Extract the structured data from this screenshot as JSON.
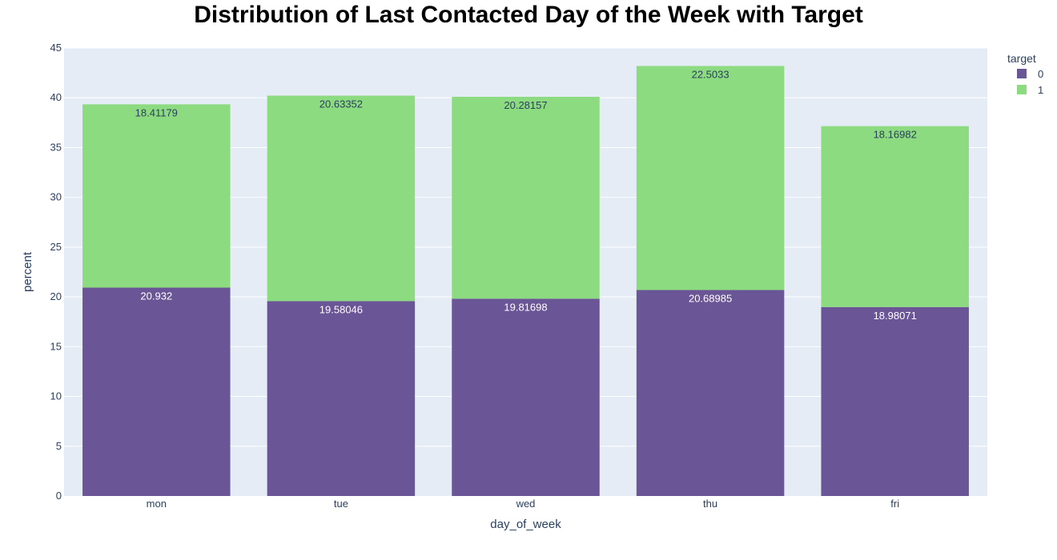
{
  "chart_data": {
    "type": "bar",
    "barmode": "stack",
    "title": "Distribution of Last Contacted Day of the Week with Target",
    "xlabel": "day_of_week",
    "ylabel": "percent",
    "categories": [
      "mon",
      "tue",
      "wed",
      "thu",
      "fri"
    ],
    "ylim": [
      0,
      45
    ],
    "yticks": [
      0,
      5,
      10,
      15,
      20,
      25,
      30,
      35,
      40,
      45
    ],
    "grid": true,
    "legend": {
      "title": "target",
      "placement": "top-right"
    },
    "series": [
      {
        "name": "0",
        "color": "#6a5596",
        "label_color": "#ffffff",
        "values": [
          20.932,
          19.58046,
          19.81698,
          20.68985,
          18.98071
        ],
        "labels": [
          "20.932",
          "19.58046",
          "19.81698",
          "20.68985",
          "18.98071"
        ]
      },
      {
        "name": "1",
        "color": "#8ddb80",
        "label_color": "#2a3f5f",
        "values": [
          18.41179,
          20.63352,
          20.28157,
          22.5033,
          18.16982
        ],
        "labels": [
          "18.41179",
          "20.63352",
          "20.28157",
          "22.5033",
          "18.16982"
        ]
      }
    ],
    "colors": {
      "plot_bg": "#e5ecf6",
      "grid": "#ffffff",
      "text": "#2a3f5f"
    }
  }
}
